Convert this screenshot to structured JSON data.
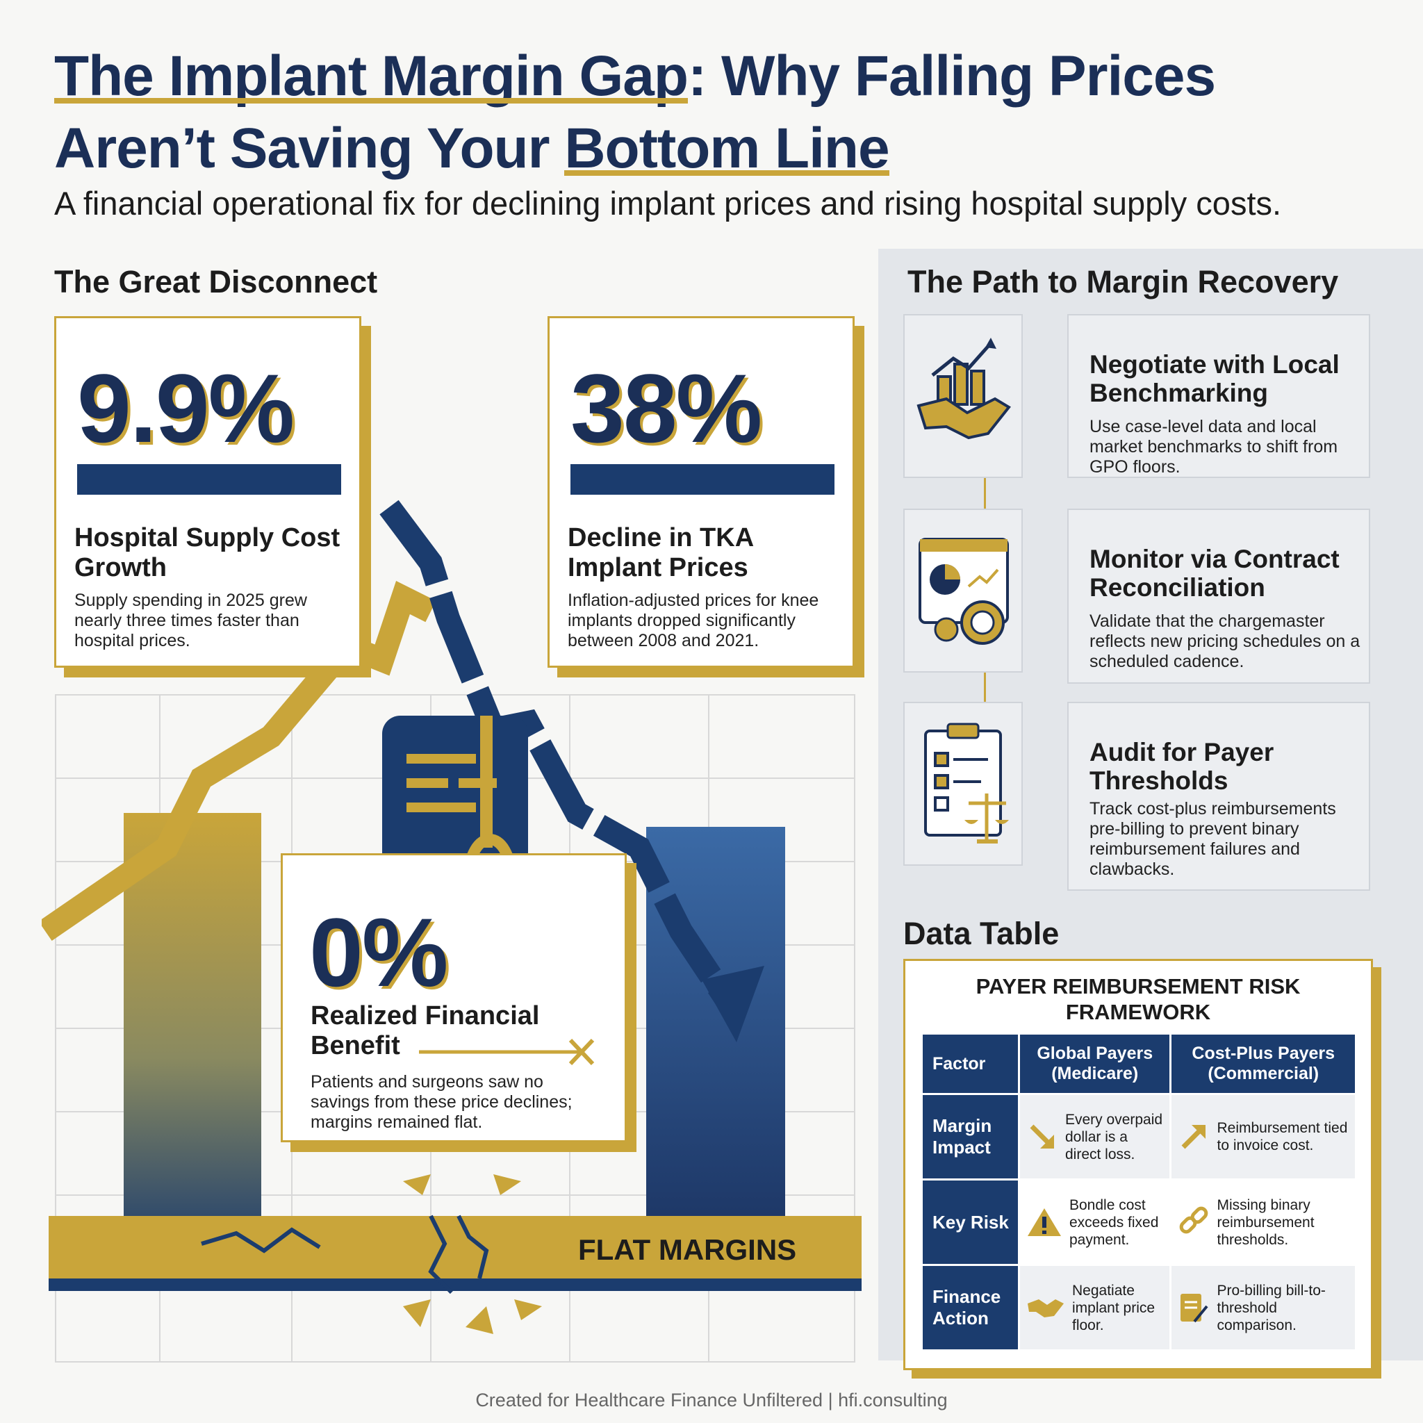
{
  "header": {
    "title_line1_a": "The Implant Margin Gap",
    "title_line1_b": ": Why Falling Prices",
    "title_line2_a": "Aren’t Saving Your ",
    "title_line2_b": "Bottom Line",
    "subtitle": "A financial operational fix for declining implant prices and rising hospital supply costs."
  },
  "disconnect": {
    "heading": "The Great Disconnect",
    "stats": [
      {
        "value": "9.9%",
        "label": "Hospital Supply Cost Growth",
        "desc": "Supply spending in 2025 grew nearly three times faster than hospital prices."
      },
      {
        "value": "38%",
        "label": "Decline in TKA Implant Prices",
        "desc": "Inflation-adjusted prices for knee implants dropped significantly between 2008 and 2021."
      },
      {
        "value": "0%",
        "label": "Realized Financial Benefit",
        "desc": "Patients and surgeons saw no savings from these price declines; margins remained flat."
      }
    ],
    "flat_label": "FLAT MARGINS"
  },
  "recovery": {
    "heading": "The Path to Margin Recovery",
    "steps": [
      {
        "title": "Negotiate with Local Benchmarking",
        "desc": "Use case-level data and local market benchmarks to shift from GPO floors.",
        "icon": "handshake-chart-icon"
      },
      {
        "title": "Monitor via Contract Reconciliation",
        "desc": "Validate that the chargemaster reflects new pricing schedules on a scheduled cadence.",
        "icon": "dashboard-gear-icon"
      },
      {
        "title": "Audit for Payer Thresholds",
        "desc": "Track cost-plus reimbursements pre-billing to prevent binary reimbursement failures and clawbacks.",
        "icon": "clipboard-scales-icon"
      }
    ]
  },
  "table": {
    "heading": "Data Table",
    "title": "PAYER REIMBURSEMENT RISK FRAMEWORK",
    "columns": [
      "Factor",
      "Global Payers (Medicare)",
      "Cost-Plus Payers (Commercial)"
    ],
    "rows": [
      {
        "factor": "Margin Impact",
        "global": "Every overpaid dollar is a direct loss.",
        "global_icon": "arrow-down-right-icon",
        "cost_plus": "Reimbursement tied to invoice cost.",
        "cost_plus_icon": "arrow-up-right-icon"
      },
      {
        "factor": "Key Risk",
        "global": "Bondle cost exceeds fixed payment.",
        "global_icon": "warning-icon",
        "cost_plus": "Missing binary reimbursement thresholds.",
        "cost_plus_icon": "broken-link-icon"
      },
      {
        "factor": "Finance Action",
        "global": "Negatiate implant price floor.",
        "global_icon": "handshake-icon",
        "cost_plus": "Pro-billing bill-to-threshold comparison.",
        "cost_plus_icon": "document-pen-icon"
      }
    ]
  },
  "footer": "Created for Healthcare Finance Unfiltered | hfi.consulting",
  "colors": {
    "navy": "#1b2f57",
    "gold": "#c9a53a",
    "panel": "#e3e6ea"
  }
}
